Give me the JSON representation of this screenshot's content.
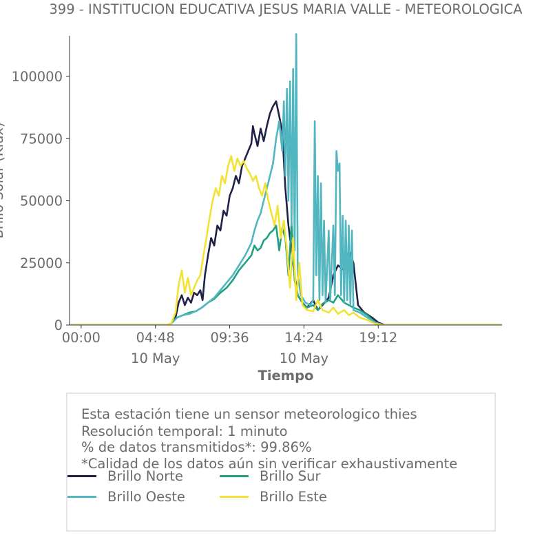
{
  "chart_data": {
    "type": "line",
    "title": "399 - INSTITUCION EDUCATIVA JESUS MARIA VALLE - METEOROLOGICA",
    "xlabel": "Tiempo",
    "ylabel": "Brillo Solar (Klux)",
    "x_range_hours": [
      -0.75,
      27.2
    ],
    "ylim": [
      0,
      115000
    ],
    "y_ticks": [
      0,
      25000,
      50000,
      75000,
      100000
    ],
    "y_tick_labels": [
      "0",
      "25000",
      "50000",
      "75000",
      "100000"
    ],
    "x_ticks_hours": [
      0,
      4.8,
      9.6,
      14.4,
      19.2
    ],
    "x_tick_labels": [
      "00:00",
      "04:48",
      "09:36",
      "14:24",
      "19:12"
    ],
    "x_tick_sublabels": [
      "",
      "10 May",
      "",
      "10 May",
      ""
    ],
    "grid": false,
    "legend_placement": "bottom",
    "series": [
      {
        "name": "Brillo Norte",
        "color": "#1f2148",
        "points": [
          [
            -0.75,
            0
          ],
          [
            5.5,
            0
          ],
          [
            5.8,
            500
          ],
          [
            6.1,
            3000
          ],
          [
            6.3,
            9000
          ],
          [
            6.5,
            12000
          ],
          [
            6.7,
            8000
          ],
          [
            6.9,
            11000
          ],
          [
            7.1,
            9000
          ],
          [
            7.3,
            13000
          ],
          [
            7.5,
            12000
          ],
          [
            7.7,
            14000
          ],
          [
            7.85,
            10000
          ],
          [
            8.0,
            20000
          ],
          [
            8.2,
            28000
          ],
          [
            8.4,
            35000
          ],
          [
            8.6,
            32000
          ],
          [
            8.8,
            40000
          ],
          [
            9.0,
            38000
          ],
          [
            9.2,
            46000
          ],
          [
            9.4,
            44000
          ],
          [
            9.6,
            52000
          ],
          [
            9.8,
            55000
          ],
          [
            10.0,
            60000
          ],
          [
            10.2,
            57000
          ],
          [
            10.4,
            64000
          ],
          [
            10.6,
            67000
          ],
          [
            10.8,
            70000
          ],
          [
            11.0,
            73000
          ],
          [
            11.1,
            80000
          ],
          [
            11.2,
            77000
          ],
          [
            11.4,
            72000
          ],
          [
            11.6,
            79000
          ],
          [
            11.8,
            74000
          ],
          [
            12.0,
            80000
          ],
          [
            12.2,
            85000
          ],
          [
            12.4,
            88000
          ],
          [
            12.6,
            90000
          ],
          [
            12.8,
            84000
          ],
          [
            13.0,
            78000
          ],
          [
            13.2,
            55000
          ],
          [
            13.4,
            40000
          ],
          [
            13.6,
            30000
          ],
          [
            13.8,
            20000
          ],
          [
            14.0,
            12000
          ],
          [
            14.3,
            9000
          ],
          [
            14.6,
            7000
          ],
          [
            15.0,
            10000
          ],
          [
            15.3,
            6000
          ],
          [
            15.6,
            8000
          ],
          [
            16.0,
            11000
          ],
          [
            16.3,
            20000
          ],
          [
            16.6,
            24000
          ],
          [
            17.0,
            22000
          ],
          [
            17.3,
            30000
          ],
          [
            17.6,
            25000
          ],
          [
            17.9,
            8000
          ],
          [
            18.3,
            5000
          ],
          [
            18.8,
            3000
          ],
          [
            19.2,
            1000
          ],
          [
            19.6,
            0
          ],
          [
            27.2,
            0
          ]
        ]
      },
      {
        "name": "Brillo Sur",
        "color": "#22a07f",
        "points": [
          [
            -0.75,
            0
          ],
          [
            5.5,
            0
          ],
          [
            5.8,
            500
          ],
          [
            6.2,
            3000
          ],
          [
            6.6,
            4000
          ],
          [
            7.0,
            5000
          ],
          [
            7.4,
            5500
          ],
          [
            7.8,
            7000
          ],
          [
            8.2,
            9000
          ],
          [
            8.6,
            10500
          ],
          [
            9.0,
            13000
          ],
          [
            9.4,
            15000
          ],
          [
            9.8,
            18000
          ],
          [
            10.2,
            22000
          ],
          [
            10.6,
            25000
          ],
          [
            11.0,
            28000
          ],
          [
            11.2,
            32000
          ],
          [
            11.4,
            30000
          ],
          [
            11.6,
            31000
          ],
          [
            11.8,
            34000
          ],
          [
            12.0,
            35000
          ],
          [
            12.2,
            37000
          ],
          [
            12.4,
            38000
          ],
          [
            12.6,
            40000
          ],
          [
            12.8,
            30000
          ],
          [
            13.0,
            39000
          ],
          [
            13.2,
            35000
          ],
          [
            13.4,
            20000
          ],
          [
            13.6,
            41000
          ],
          [
            13.8,
            18000
          ],
          [
            14.0,
            12000
          ],
          [
            14.3,
            9000
          ],
          [
            14.6,
            7000
          ],
          [
            15.0,
            8000
          ],
          [
            15.3,
            6000
          ],
          [
            15.6,
            8500
          ],
          [
            16.0,
            10000
          ],
          [
            16.3,
            9000
          ],
          [
            16.6,
            12000
          ],
          [
            17.0,
            9000
          ],
          [
            17.3,
            8000
          ],
          [
            17.6,
            7000
          ],
          [
            18.0,
            6000
          ],
          [
            18.5,
            4000
          ],
          [
            19.0,
            1000
          ],
          [
            19.5,
            0
          ],
          [
            27.2,
            0
          ]
        ]
      },
      {
        "name": "Brillo Oeste",
        "color": "#52b6c0",
        "points": [
          [
            -0.75,
            0
          ],
          [
            5.5,
            0
          ],
          [
            5.8,
            500
          ],
          [
            6.2,
            3000
          ],
          [
            6.6,
            4000
          ],
          [
            7.0,
            4500
          ],
          [
            7.4,
            5500
          ],
          [
            7.8,
            7000
          ],
          [
            8.2,
            9000
          ],
          [
            8.6,
            11000
          ],
          [
            9.0,
            14000
          ],
          [
            9.4,
            17000
          ],
          [
            9.8,
            20000
          ],
          [
            10.2,
            24000
          ],
          [
            10.6,
            28000
          ],
          [
            11.0,
            33000
          ],
          [
            11.2,
            38000
          ],
          [
            11.4,
            42000
          ],
          [
            11.6,
            45000
          ],
          [
            11.8,
            50000
          ],
          [
            12.0,
            55000
          ],
          [
            12.2,
            60000
          ],
          [
            12.4,
            65000
          ],
          [
            12.6,
            75000
          ],
          [
            12.8,
            82000
          ],
          [
            13.0,
            70000
          ],
          [
            13.1,
            90000
          ],
          [
            13.2,
            60000
          ],
          [
            13.3,
            95000
          ],
          [
            13.4,
            50000
          ],
          [
            13.5,
            98000
          ],
          [
            13.6,
            40000
          ],
          [
            13.7,
            103000
          ],
          [
            13.8,
            30000
          ],
          [
            13.9,
            117000
          ],
          [
            14.0,
            20000
          ],
          [
            14.2,
            12000
          ],
          [
            14.5,
            9000
          ],
          [
            14.8,
            8000
          ],
          [
            15.0,
            10000
          ],
          [
            15.1,
            82000
          ],
          [
            15.2,
            20000
          ],
          [
            15.3,
            60000
          ],
          [
            15.4,
            10000
          ],
          [
            15.5,
            57000
          ],
          [
            15.6,
            12000
          ],
          [
            15.7,
            42000
          ],
          [
            15.8,
            9000
          ],
          [
            16.0,
            38000
          ],
          [
            16.1,
            10000
          ],
          [
            16.3,
            40000
          ],
          [
            16.4,
            12000
          ],
          [
            16.5,
            70000
          ],
          [
            16.6,
            62000
          ],
          [
            16.7,
            65000
          ],
          [
            16.8,
            12000
          ],
          [
            16.9,
            44000
          ],
          [
            17.0,
            9000
          ],
          [
            17.1,
            42000
          ],
          [
            17.2,
            10000
          ],
          [
            17.3,
            40000
          ],
          [
            17.4,
            8000
          ],
          [
            17.5,
            38000
          ],
          [
            17.6,
            6000
          ],
          [
            18.0,
            5000
          ],
          [
            18.5,
            3000
          ],
          [
            19.0,
            1000
          ],
          [
            19.5,
            0
          ],
          [
            27.2,
            0
          ]
        ]
      },
      {
        "name": "Brillo Este",
        "color": "#f2e234",
        "points": [
          [
            -0.75,
            0
          ],
          [
            5.5,
            0
          ],
          [
            5.8,
            500
          ],
          [
            6.1,
            5000
          ],
          [
            6.3,
            16000
          ],
          [
            6.5,
            22000
          ],
          [
            6.7,
            13000
          ],
          [
            6.9,
            19000
          ],
          [
            7.1,
            12000
          ],
          [
            7.3,
            15000
          ],
          [
            7.5,
            18000
          ],
          [
            7.7,
            20000
          ],
          [
            7.9,
            28000
          ],
          [
            8.1,
            35000
          ],
          [
            8.3,
            43000
          ],
          [
            8.5,
            50000
          ],
          [
            8.7,
            55000
          ],
          [
            8.9,
            52000
          ],
          [
            9.1,
            60000
          ],
          [
            9.3,
            57000
          ],
          [
            9.5,
            64000
          ],
          [
            9.7,
            68000
          ],
          [
            9.9,
            62000
          ],
          [
            10.1,
            67000
          ],
          [
            10.3,
            64000
          ],
          [
            10.5,
            66000
          ],
          [
            10.7,
            63000
          ],
          [
            10.9,
            61000
          ],
          [
            11.1,
            58000
          ],
          [
            11.3,
            60000
          ],
          [
            11.5,
            55000
          ],
          [
            11.7,
            52000
          ],
          [
            11.9,
            57000
          ],
          [
            12.1,
            50000
          ],
          [
            12.3,
            45000
          ],
          [
            12.5,
            40000
          ],
          [
            12.7,
            48000
          ],
          [
            12.9,
            35000
          ],
          [
            13.1,
            42000
          ],
          [
            13.3,
            30000
          ],
          [
            13.5,
            15000
          ],
          [
            13.7,
            35000
          ],
          [
            13.9,
            10000
          ],
          [
            14.1,
            25000
          ],
          [
            14.3,
            8000
          ],
          [
            14.6,
            6000
          ],
          [
            15.0,
            5500
          ],
          [
            15.3,
            10000
          ],
          [
            15.6,
            6000
          ],
          [
            16.0,
            5000
          ],
          [
            16.3,
            7000
          ],
          [
            16.6,
            4500
          ],
          [
            17.0,
            6000
          ],
          [
            17.3,
            4000
          ],
          [
            17.6,
            5000
          ],
          [
            18.0,
            3000
          ],
          [
            18.5,
            2000
          ],
          [
            19.0,
            500
          ],
          [
            19.5,
            0
          ],
          [
            27.2,
            0
          ]
        ]
      }
    ]
  },
  "info_box": {
    "lines": [
      "Esta estación tiene un sensor meteorologico thies",
      "Resolución temporal: 1 minuto",
      "% de datos transmitidos*: 99.86%",
      "*Calidad de los datos aún sin verificar exhaustivamente"
    ]
  }
}
